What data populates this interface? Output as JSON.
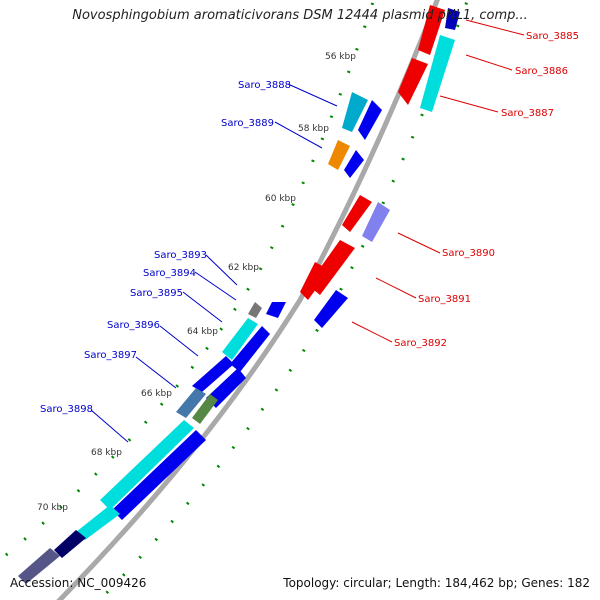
{
  "title": "Novosphingobium aromaticivorans DSM 12444 plasmid pNL1, comp...",
  "footer": {
    "accession": "Accession: NC_009426",
    "summary": "Topology: circular; Length: 184,462 bp; Genes: 182"
  },
  "ticks": [
    "56 kbp",
    "58 kbp",
    "60 kbp",
    "62 kbp",
    "64 kbp",
    "66 kbp",
    "68 kbp",
    "70 kbp"
  ],
  "genes_left": [
    "Saro_3888",
    "Saro_3889",
    "Saro_3893",
    "Saro_3894",
    "Saro_3895",
    "Saro_3896",
    "Saro_3897",
    "Saro_3898"
  ],
  "genes_right": [
    "Saro_3885",
    "Saro_3886",
    "Saro_3887",
    "Saro_3890",
    "Saro_3891",
    "Saro_3892"
  ],
  "colors": {
    "forward_label": "#0000cc",
    "reverse_label": "#dd0000",
    "blue_gene": "#0000ee",
    "red_gene": "#ee0000",
    "cyan_gene": "#00dddd",
    "tick_dots": "#008800",
    "backbone": "#888888"
  }
}
